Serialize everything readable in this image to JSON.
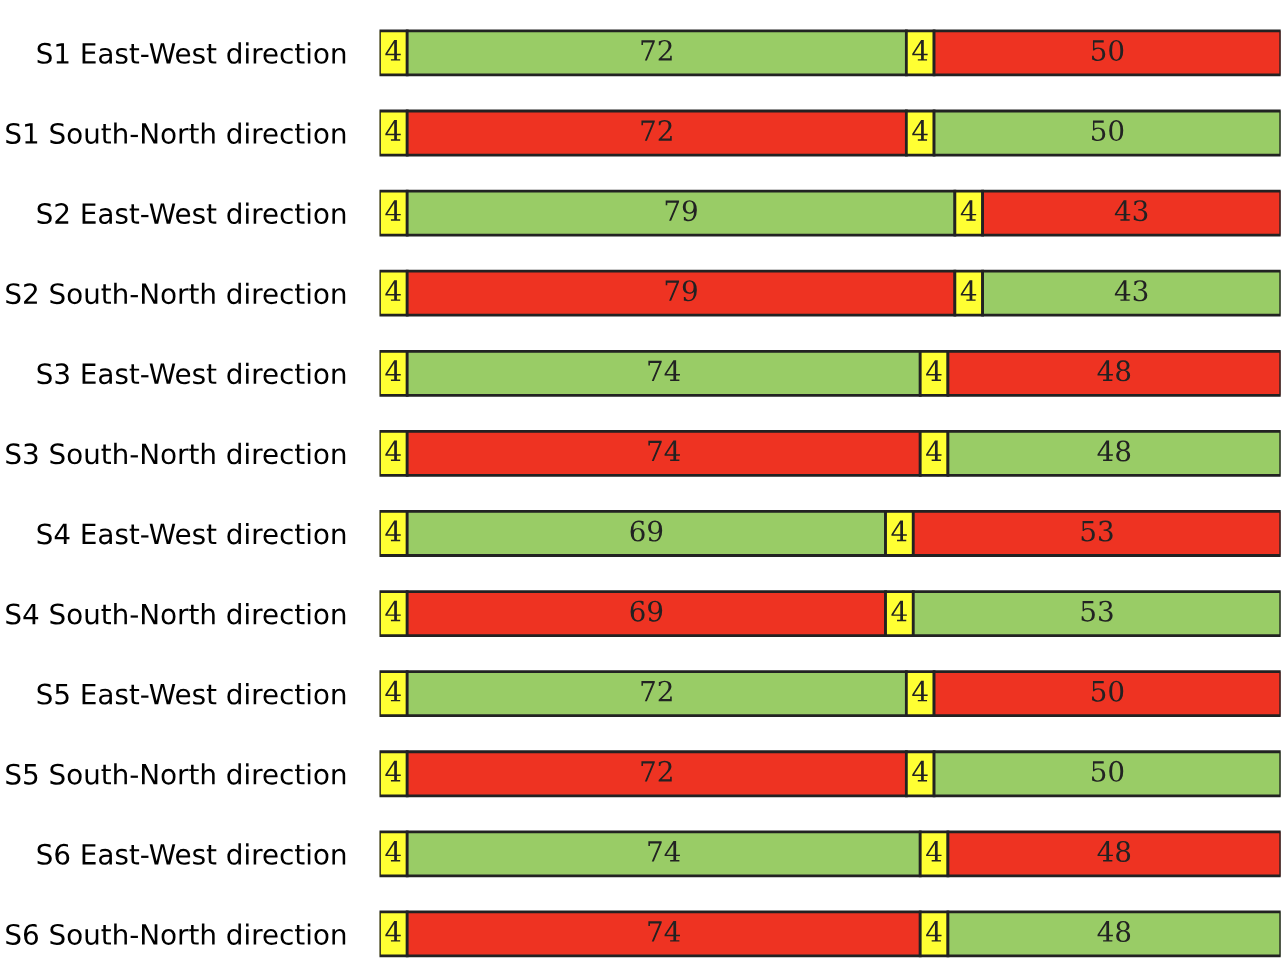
{
  "chart_data": {
    "type": "bar",
    "orientation": "horizontal",
    "stacked": true,
    "data_labels": true,
    "tick_labels": "y",
    "grid": false,
    "legend": false,
    "xlim": [
      0,
      130
    ],
    "categories": [
      "S1 East-West direction",
      "S1 South-North direction",
      "S2 East-West direction",
      "S2 South-North direction",
      "S3 East-West direction",
      "S3 South-North direction",
      "S4 East-West direction",
      "S4 South-North direction",
      "S5 East-West direction",
      "S5 South-North direction",
      "S6 East-West direction",
      "S6 South-North direction"
    ],
    "series": [
      {
        "values": [
          4,
          4,
          4,
          4,
          4,
          4,
          4,
          4,
          4,
          4,
          4,
          4
        ],
        "colors": [
          "#ffff33",
          "#ffff33",
          "#ffff33",
          "#ffff33",
          "#ffff33",
          "#ffff33",
          "#ffff33",
          "#ffff33",
          "#ffff33",
          "#ffff33",
          "#ffff33",
          "#ffff33"
        ]
      },
      {
        "values": [
          72,
          72,
          79,
          79,
          74,
          74,
          69,
          69,
          72,
          72,
          74,
          74
        ],
        "colors": [
          "#99cc66",
          "#ee3322",
          "#99cc66",
          "#ee3322",
          "#99cc66",
          "#ee3322",
          "#99cc66",
          "#ee3322",
          "#99cc66",
          "#ee3322",
          "#99cc66",
          "#ee3322"
        ]
      },
      {
        "values": [
          4,
          4,
          4,
          4,
          4,
          4,
          4,
          4,
          4,
          4,
          4,
          4
        ],
        "colors": [
          "#ffff33",
          "#ffff33",
          "#ffff33",
          "#ffff33",
          "#ffff33",
          "#ffff33",
          "#ffff33",
          "#ffff33",
          "#ffff33",
          "#ffff33",
          "#ffff33",
          "#ffff33"
        ]
      },
      {
        "values": [
          50,
          50,
          43,
          43,
          48,
          48,
          53,
          53,
          50,
          50,
          48,
          48
        ],
        "colors": [
          "#ee3322",
          "#99cc66",
          "#ee3322",
          "#99cc66",
          "#ee3322",
          "#99cc66",
          "#ee3322",
          "#99cc66",
          "#ee3322",
          "#99cc66",
          "#ee3322",
          "#99cc66"
        ]
      }
    ]
  }
}
